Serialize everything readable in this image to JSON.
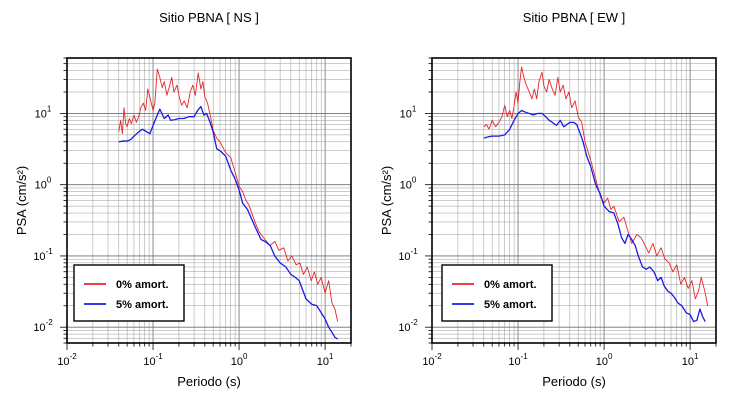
{
  "chart_data": [
    {
      "type": "line",
      "title": "Sitio PBNA [ NS ]",
      "xlabel": "Periodo (s)",
      "ylabel": "PSA (cm/s²)",
      "x_scale": "log",
      "y_scale": "log",
      "xlim": [
        0.01,
        20
      ],
      "ylim": [
        0.006,
        60
      ],
      "grid": true,
      "legend_position": "bottom-left",
      "x_ticks": [
        {
          "base": "10",
          "exp": "-2"
        },
        {
          "base": "10",
          "exp": "-1"
        },
        {
          "base": "10",
          "exp": "0"
        },
        {
          "base": "10",
          "exp": "1"
        }
      ],
      "y_ticks": [
        {
          "base": "10",
          "exp": "-2"
        },
        {
          "base": "10",
          "exp": "-1"
        },
        {
          "base": "10",
          "exp": "0"
        },
        {
          "base": "10",
          "exp": "1"
        }
      ],
      "series": [
        {
          "name": "0% amort.",
          "color": "#e8262a",
          "points": [
            [
              0.04,
              5.5
            ],
            [
              0.042,
              8
            ],
            [
              0.044,
              5.2
            ],
            [
              0.046,
              12
            ],
            [
              0.048,
              7.2
            ],
            [
              0.05,
              6.5
            ],
            [
              0.053,
              8.5
            ],
            [
              0.056,
              7.2
            ],
            [
              0.06,
              9.5
            ],
            [
              0.064,
              7.5
            ],
            [
              0.068,
              9
            ],
            [
              0.072,
              12
            ],
            [
              0.077,
              14
            ],
            [
              0.082,
              11
            ],
            [
              0.087,
              22
            ],
            [
              0.093,
              16
            ],
            [
              0.1,
              11
            ],
            [
              0.105,
              14
            ],
            [
              0.112,
              42
            ],
            [
              0.12,
              32
            ],
            [
              0.128,
              23
            ],
            [
              0.135,
              28
            ],
            [
              0.145,
              18
            ],
            [
              0.155,
              24
            ],
            [
              0.165,
              32
            ],
            [
              0.175,
              20
            ],
            [
              0.19,
              25
            ],
            [
              0.2,
              18
            ],
            [
              0.215,
              13
            ],
            [
              0.23,
              15
            ],
            [
              0.25,
              12
            ],
            [
              0.27,
              20
            ],
            [
              0.29,
              25
            ],
            [
              0.31,
              18
            ],
            [
              0.335,
              37
            ],
            [
              0.36,
              22
            ],
            [
              0.38,
              28
            ],
            [
              0.4,
              17
            ],
            [
              0.43,
              14
            ],
            [
              0.47,
              8.5
            ],
            [
              0.5,
              5.8
            ],
            [
              0.55,
              4.5
            ],
            [
              0.6,
              4
            ],
            [
              0.7,
              2.8
            ],
            [
              0.8,
              2.4
            ],
            [
              0.9,
              1.5
            ],
            [
              1.0,
              0.95
            ],
            [
              1.1,
              0.8
            ],
            [
              1.2,
              0.6
            ],
            [
              1.3,
              0.52
            ],
            [
              1.5,
              0.32
            ],
            [
              1.7,
              0.22
            ],
            [
              2.0,
              0.17
            ],
            [
              2.3,
              0.14
            ],
            [
              2.6,
              0.16
            ],
            [
              2.9,
              0.12
            ],
            [
              3.3,
              0.13
            ],
            [
              3.7,
              0.085
            ],
            [
              4.1,
              0.1
            ],
            [
              4.6,
              0.075
            ],
            [
              5.1,
              0.08
            ],
            [
              5.6,
              0.055
            ],
            [
              6.2,
              0.07
            ],
            [
              6.9,
              0.045
            ],
            [
              7.5,
              0.06
            ],
            [
              8.2,
              0.04
            ],
            [
              9.0,
              0.05
            ],
            [
              10.0,
              0.03
            ],
            [
              11.0,
              0.045
            ],
            [
              12.0,
              0.022
            ],
            [
              13.0,
              0.018
            ],
            [
              14.0,
              0.012
            ]
          ]
        },
        {
          "name": "5% amort.",
          "color": "#1a1ae6",
          "points": [
            [
              0.04,
              4
            ],
            [
              0.045,
              4.1
            ],
            [
              0.05,
              4.1
            ],
            [
              0.055,
              4.3
            ],
            [
              0.06,
              4.8
            ],
            [
              0.068,
              5.5
            ],
            [
              0.075,
              6
            ],
            [
              0.085,
              5.5
            ],
            [
              0.092,
              5.2
            ],
            [
              0.1,
              6.8
            ],
            [
              0.11,
              9
            ],
            [
              0.12,
              11.5
            ],
            [
              0.135,
              8.5
            ],
            [
              0.15,
              9.5
            ],
            [
              0.16,
              8
            ],
            [
              0.18,
              8.2
            ],
            [
              0.2,
              8.5
            ],
            [
              0.23,
              8.5
            ],
            [
              0.26,
              9
            ],
            [
              0.3,
              9
            ],
            [
              0.33,
              11
            ],
            [
              0.36,
              12.5
            ],
            [
              0.39,
              9.5
            ],
            [
              0.42,
              10
            ],
            [
              0.46,
              7.5
            ],
            [
              0.5,
              5.5
            ],
            [
              0.55,
              3.2
            ],
            [
              0.62,
              2.9
            ],
            [
              0.7,
              2.5
            ],
            [
              0.8,
              1.6
            ],
            [
              0.9,
              1.2
            ],
            [
              1.0,
              0.85
            ],
            [
              1.1,
              0.55
            ],
            [
              1.25,
              0.45
            ],
            [
              1.4,
              0.33
            ],
            [
              1.6,
              0.23
            ],
            [
              1.8,
              0.17
            ],
            [
              2.0,
              0.16
            ],
            [
              2.3,
              0.14
            ],
            [
              2.6,
              0.1
            ],
            [
              3.0,
              0.08
            ],
            [
              3.5,
              0.07
            ],
            [
              4.0,
              0.055
            ],
            [
              4.5,
              0.05
            ],
            [
              5.0,
              0.045
            ],
            [
              5.5,
              0.033
            ],
            [
              6.0,
              0.025
            ],
            [
              7.0,
              0.021
            ],
            [
              8.0,
              0.02
            ],
            [
              9.0,
              0.016
            ],
            [
              10.0,
              0.013
            ],
            [
              11.0,
              0.01
            ],
            [
              12.0,
              0.0085
            ],
            [
              13.0,
              0.0072
            ],
            [
              14.0,
              0.0068
            ]
          ]
        }
      ]
    },
    {
      "type": "line",
      "title": "Sitio PBNA [ EW ]",
      "xlabel": "Periodo (s)",
      "ylabel": "PSA (cm/s²)",
      "x_scale": "log",
      "y_scale": "log",
      "xlim": [
        0.01,
        20
      ],
      "ylim": [
        0.006,
        60
      ],
      "grid": true,
      "legend_position": "bottom-left",
      "x_ticks": [
        {
          "base": "10",
          "exp": "-2"
        },
        {
          "base": "10",
          "exp": "-1"
        },
        {
          "base": "10",
          "exp": "0"
        },
        {
          "base": "10",
          "exp": "1"
        }
      ],
      "y_ticks": [
        {
          "base": "10",
          "exp": "-2"
        },
        {
          "base": "10",
          "exp": "-1"
        },
        {
          "base": "10",
          "exp": "0"
        },
        {
          "base": "10",
          "exp": "1"
        }
      ],
      "series": [
        {
          "name": "0% amort.",
          "color": "#e8262a",
          "points": [
            [
              0.04,
              6.5
            ],
            [
              0.043,
              7
            ],
            [
              0.046,
              6
            ],
            [
              0.05,
              8
            ],
            [
              0.055,
              6.5
            ],
            [
              0.06,
              7.5
            ],
            [
              0.065,
              9
            ],
            [
              0.07,
              13
            ],
            [
              0.075,
              9
            ],
            [
              0.08,
              11
            ],
            [
              0.085,
              8.5
            ],
            [
              0.09,
              13
            ],
            [
              0.095,
              20
            ],
            [
              0.1,
              14
            ],
            [
              0.105,
              28
            ],
            [
              0.11,
              45
            ],
            [
              0.117,
              32
            ],
            [
              0.125,
              25
            ],
            [
              0.135,
              20
            ],
            [
              0.145,
              16
            ],
            [
              0.155,
              22
            ],
            [
              0.165,
              16
            ],
            [
              0.175,
              28
            ],
            [
              0.19,
              38
            ],
            [
              0.2,
              24
            ],
            [
              0.215,
              20
            ],
            [
              0.23,
              30
            ],
            [
              0.25,
              22
            ],
            [
              0.27,
              18
            ],
            [
              0.29,
              32
            ],
            [
              0.31,
              20
            ],
            [
              0.335,
              25
            ],
            [
              0.36,
              16
            ],
            [
              0.39,
              20
            ],
            [
              0.42,
              12
            ],
            [
              0.46,
              15
            ],
            [
              0.5,
              9
            ],
            [
              0.55,
              7.5
            ],
            [
              0.6,
              4
            ],
            [
              0.7,
              2.2
            ],
            [
              0.8,
              1.2
            ],
            [
              0.9,
              0.7
            ],
            [
              1.0,
              0.55
            ],
            [
              1.1,
              0.65
            ],
            [
              1.2,
              0.45
            ],
            [
              1.3,
              0.5
            ],
            [
              1.5,
              0.3
            ],
            [
              1.7,
              0.35
            ],
            [
              1.9,
              0.22
            ],
            [
              2.1,
              0.15
            ],
            [
              2.4,
              0.2
            ],
            [
              2.7,
              0.18
            ],
            [
              3.0,
              0.14
            ],
            [
              3.3,
              0.11
            ],
            [
              3.7,
              0.15
            ],
            [
              4.1,
              0.1
            ],
            [
              4.6,
              0.13
            ],
            [
              5.1,
              0.09
            ],
            [
              5.7,
              0.08
            ],
            [
              6.3,
              0.06
            ],
            [
              7.0,
              0.075
            ],
            [
              7.8,
              0.04
            ],
            [
              8.6,
              0.05
            ],
            [
              9.5,
              0.035
            ],
            [
              10.5,
              0.045
            ],
            [
              11.5,
              0.025
            ],
            [
              12.5,
              0.032
            ],
            [
              13.5,
              0.05
            ],
            [
              15.0,
              0.03
            ],
            [
              16.0,
              0.02
            ]
          ]
        },
        {
          "name": "5% amort.",
          "color": "#1a1ae6",
          "points": [
            [
              0.04,
              4.5
            ],
            [
              0.045,
              4.7
            ],
            [
              0.05,
              4.8
            ],
            [
              0.06,
              4.8
            ],
            [
              0.07,
              5
            ],
            [
              0.08,
              6
            ],
            [
              0.09,
              8
            ],
            [
              0.1,
              10
            ],
            [
              0.11,
              11
            ],
            [
              0.12,
              10.5
            ],
            [
              0.135,
              10
            ],
            [
              0.15,
              9.5
            ],
            [
              0.17,
              10
            ],
            [
              0.19,
              10
            ],
            [
              0.21,
              9
            ],
            [
              0.23,
              8
            ],
            [
              0.25,
              7.5
            ],
            [
              0.28,
              6.8
            ],
            [
              0.31,
              8
            ],
            [
              0.34,
              6.5
            ],
            [
              0.37,
              7
            ],
            [
              0.4,
              7.5
            ],
            [
              0.44,
              7.5
            ],
            [
              0.48,
              7
            ],
            [
              0.52,
              5.5
            ],
            [
              0.57,
              4
            ],
            [
              0.63,
              2.5
            ],
            [
              0.7,
              1.8
            ],
            [
              0.8,
              1
            ],
            [
              0.9,
              0.75
            ],
            [
              1.0,
              0.5
            ],
            [
              1.15,
              0.42
            ],
            [
              1.3,
              0.4
            ],
            [
              1.45,
              0.28
            ],
            [
              1.6,
              0.18
            ],
            [
              1.75,
              0.15
            ],
            [
              1.9,
              0.2
            ],
            [
              2.1,
              0.17
            ],
            [
              2.3,
              0.14
            ],
            [
              2.5,
              0.1
            ],
            [
              2.8,
              0.07
            ],
            [
              3.1,
              0.065
            ],
            [
              3.4,
              0.07
            ],
            [
              3.8,
              0.06
            ],
            [
              4.2,
              0.045
            ],
            [
              4.6,
              0.05
            ],
            [
              5.0,
              0.038
            ],
            [
              5.5,
              0.032
            ],
            [
              6.0,
              0.03
            ],
            [
              6.6,
              0.026
            ],
            [
              7.2,
              0.022
            ],
            [
              8.0,
              0.02
            ],
            [
              9.0,
              0.016
            ],
            [
              10.0,
              0.015
            ],
            [
              11.0,
              0.012
            ],
            [
              12.0,
              0.0125
            ],
            [
              13.0,
              0.018
            ],
            [
              14.0,
              0.014
            ],
            [
              15.0,
              0.012
            ]
          ]
        }
      ]
    }
  ]
}
